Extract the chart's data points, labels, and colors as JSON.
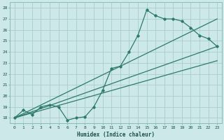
{
  "xlabel": "Humidex (Indice chaleur)",
  "bg_color": "#cce8e8",
  "grid_color": "#aacccc",
  "line_color": "#2d7a6e",
  "xlim": [
    -0.5,
    23.5
  ],
  "ylim": [
    17.5,
    28.5
  ],
  "xticks": [
    0,
    1,
    2,
    3,
    4,
    5,
    6,
    7,
    8,
    9,
    10,
    11,
    12,
    13,
    14,
    15,
    16,
    17,
    18,
    19,
    20,
    21,
    22,
    23
  ],
  "yticks": [
    18,
    19,
    20,
    21,
    22,
    23,
    24,
    25,
    26,
    27,
    28
  ],
  "line1_x": [
    0,
    1,
    2,
    3,
    4,
    5,
    6,
    7,
    8,
    9,
    10,
    11,
    12,
    13,
    14,
    15,
    16,
    17,
    18,
    19,
    20,
    21,
    22,
    23
  ],
  "line1_y": [
    18.0,
    18.7,
    18.3,
    19.0,
    19.2,
    19.0,
    17.8,
    18.0,
    18.1,
    19.0,
    20.5,
    22.5,
    22.7,
    24.0,
    25.5,
    27.8,
    27.3,
    27.0,
    27.0,
    26.8,
    26.2,
    25.5,
    25.2,
    24.5
  ],
  "line2_x": [
    0,
    23
  ],
  "line2_y": [
    18.0,
    27.0
  ],
  "line3_x": [
    0,
    23
  ],
  "line3_y": [
    18.0,
    24.5
  ],
  "line4_x": [
    0,
    23
  ],
  "line4_y": [
    18.0,
    23.2
  ]
}
